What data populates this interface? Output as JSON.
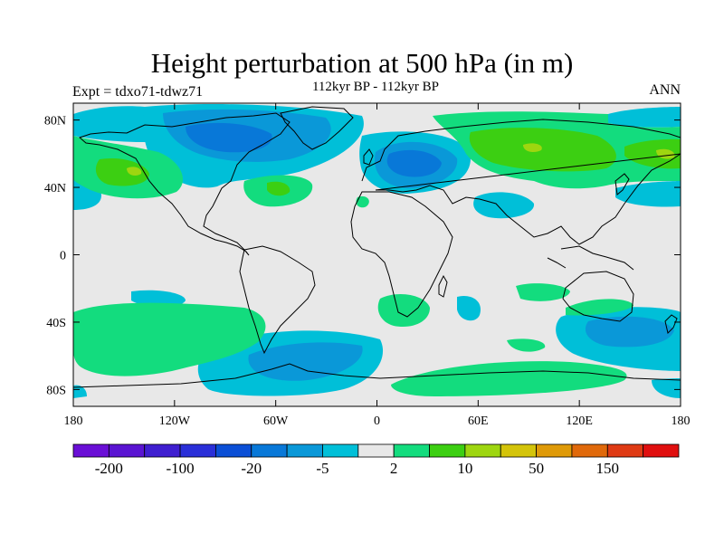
{
  "title": "Height perturbation at 500 hPa (in m)",
  "left_label": "Expt = tdxo71-tdwz71",
  "center_label": "112kyr BP - 112kyr BP",
  "right_label": "ANN",
  "map": {
    "projection": "cylindrical-equidistant",
    "lon_range": [
      -180,
      180
    ],
    "lat_range": [
      -90,
      90
    ],
    "background_color": "#e8e8e8",
    "coastline_color": "#000000",
    "x_ticks": [
      {
        "lon": -180,
        "label": "180"
      },
      {
        "lon": -120,
        "label": "120W"
      },
      {
        "lon": -60,
        "label": "60W"
      },
      {
        "lon": 0,
        "label": "0"
      },
      {
        "lon": 60,
        "label": "60E"
      },
      {
        "lon": 120,
        "label": "120E"
      },
      {
        "lon": 180,
        "label": "180"
      }
    ],
    "y_ticks": [
      {
        "lat": 80,
        "label": "80N"
      },
      {
        "lat": 40,
        "label": "40N"
      },
      {
        "lat": 0,
        "label": "0"
      },
      {
        "lat": -40,
        "label": "40S"
      },
      {
        "lat": -80,
        "label": "80S"
      }
    ]
  },
  "colorbar": {
    "colors": [
      "#6a0fd6",
      "#5a14d2",
      "#3f1fd0",
      "#2a2fd8",
      "#0b4fd6",
      "#0878d8",
      "#0a98d8",
      "#00bfd8",
      "#e8e8e8",
      "#13dc7e",
      "#3ccf12",
      "#9ed610",
      "#d4c40a",
      "#df9a08",
      "#e0690b",
      "#df3a14",
      "#e00f0f"
    ],
    "labels": [
      {
        "boundary": 1,
        "text": "-200"
      },
      {
        "boundary": 3,
        "text": "-100"
      },
      {
        "boundary": 5,
        "text": "-20"
      },
      {
        "boundary": 7,
        "text": "-5"
      },
      {
        "boundary": 9,
        "text": "2"
      },
      {
        "boundary": 11,
        "text": "10"
      },
      {
        "boundary": 13,
        "text": "50"
      },
      {
        "boundary": 15,
        "text": "150"
      }
    ]
  }
}
